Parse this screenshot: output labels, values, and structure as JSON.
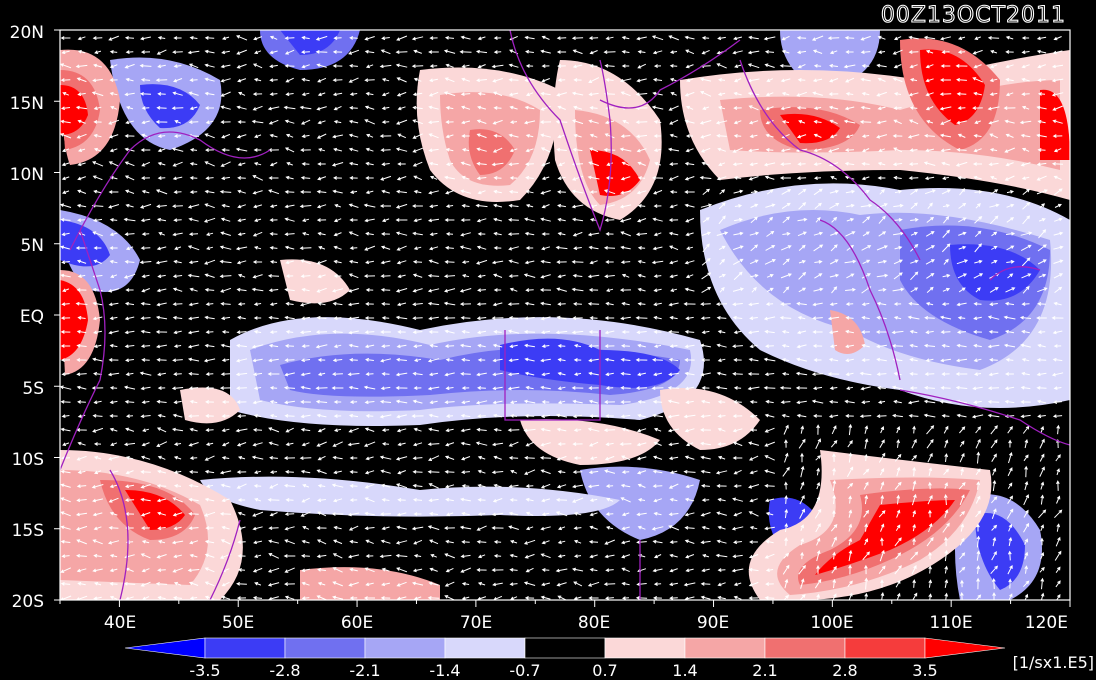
{
  "map": {
    "title": "00Z13OCT2011",
    "units": "[1/sx1.E5]",
    "lat_labels": [
      "20N",
      "15N",
      "10N",
      "5N",
      "EQ",
      "5S",
      "10S",
      "15S",
      "20S"
    ],
    "lon_labels": [
      "40E",
      "50E",
      "60E",
      "70E",
      "80E",
      "90E",
      "100E",
      "110E",
      "120E"
    ],
    "lat_range": [
      -20,
      20
    ],
    "lon_range": [
      35,
      120
    ],
    "colorbar": {
      "ticks": [
        "-3.5",
        "-2.8",
        "-2.1",
        "-1.4",
        "-0.7",
        "0.7",
        "1.4",
        "2.1",
        "2.8",
        "3.5"
      ],
      "colors": [
        "#0000ff",
        "#3c3cf5",
        "#7070f0",
        "#a6a6f5",
        "#d8d8fb",
        "#000000",
        "#fbd8d8",
        "#f5a6a6",
        "#f07070",
        "#f53c3c",
        "#ff0000"
      ]
    }
  }
}
